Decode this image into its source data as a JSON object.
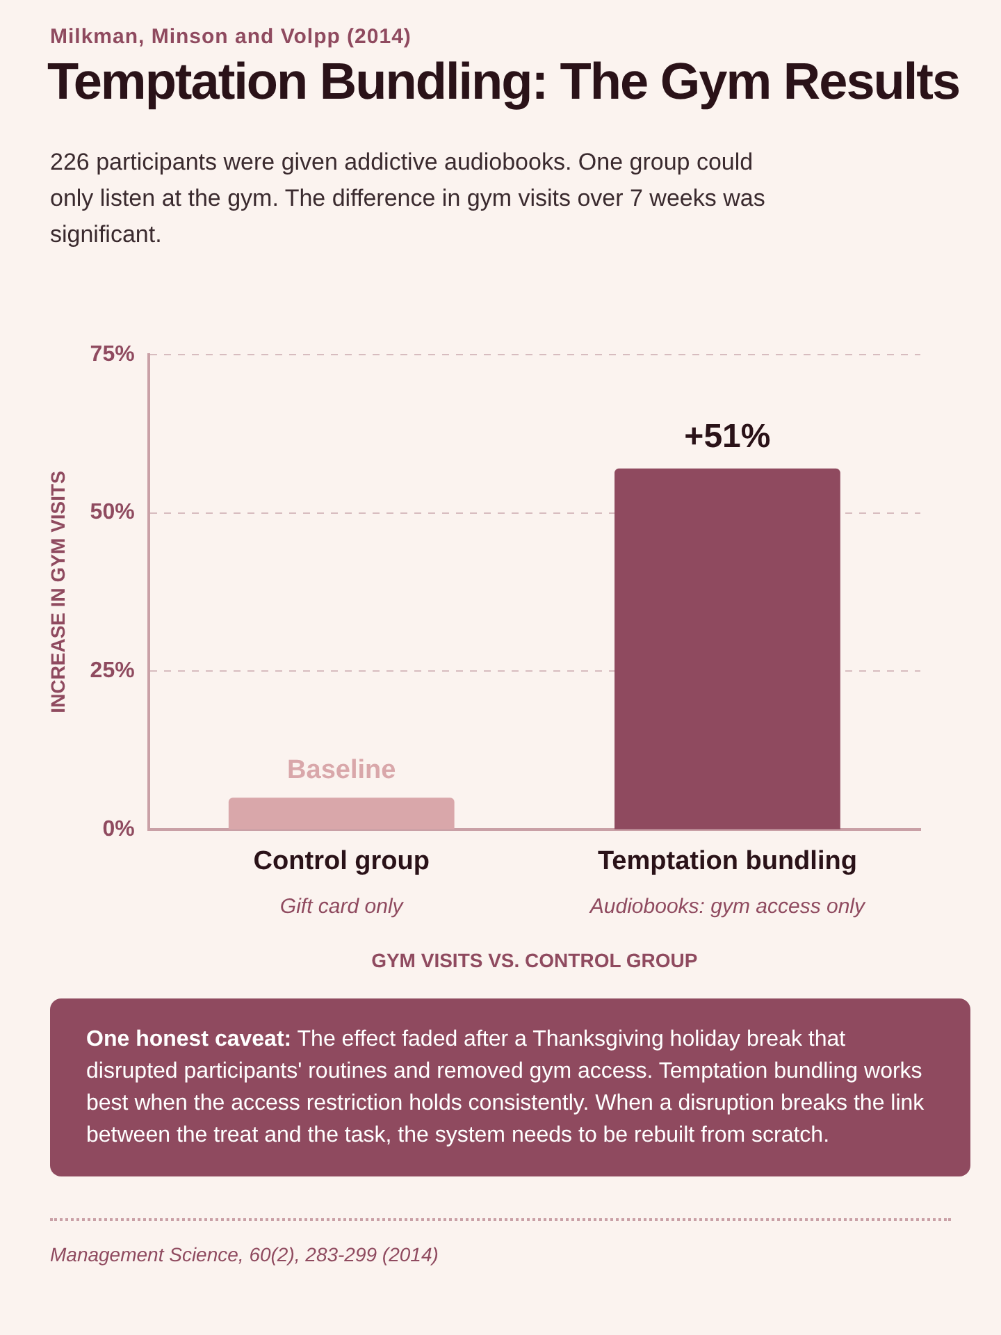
{
  "chart_data": {
    "type": "bar",
    "title": "Temptation Bundling: The Gym Results",
    "subtitle": "226 participants were given addictive audiobooks. One group could only listen at the gym. The difference in gym visits over 7 weeks was significant.",
    "ylabel": "INCREASE IN GYM VISITS",
    "xlabel": "GYM VISITS VS. CONTROL GROUP",
    "categories": [
      "Control group",
      "Temptation bundling"
    ],
    "values": [
      5,
      57
    ],
    "colors": [
      "#d9a7aa",
      "#8f4a5f"
    ],
    "ylim": [
      0,
      75
    ],
    "yticks": [
      {
        "value": 0,
        "label": "0%"
      },
      {
        "value": 25,
        "label": "25%"
      },
      {
        "value": 50,
        "label": "50%"
      },
      {
        "value": 75,
        "label": "75%"
      }
    ],
    "grid": "y",
    "legend": false,
    "annotations": [
      {
        "text": "Milkman, Minson and Volpp (2014)"
      },
      "Baseline",
      "+51%",
      "Gift card only",
      "Audiobooks: gym access only",
      {
        "text": "One honest caveat: The effect faded after a Thanksgiving holiday break that disrupted participants' routines and removed gym access. Temptation bundling works best when the access restriction holds consistently. When a disruption breaks the link between the treat and the task, the system needs to be rebuilt from scratch."
      },
      {
        "text": "Management Science, 60(2), 283-299 (2014)"
      }
    ]
  }
}
